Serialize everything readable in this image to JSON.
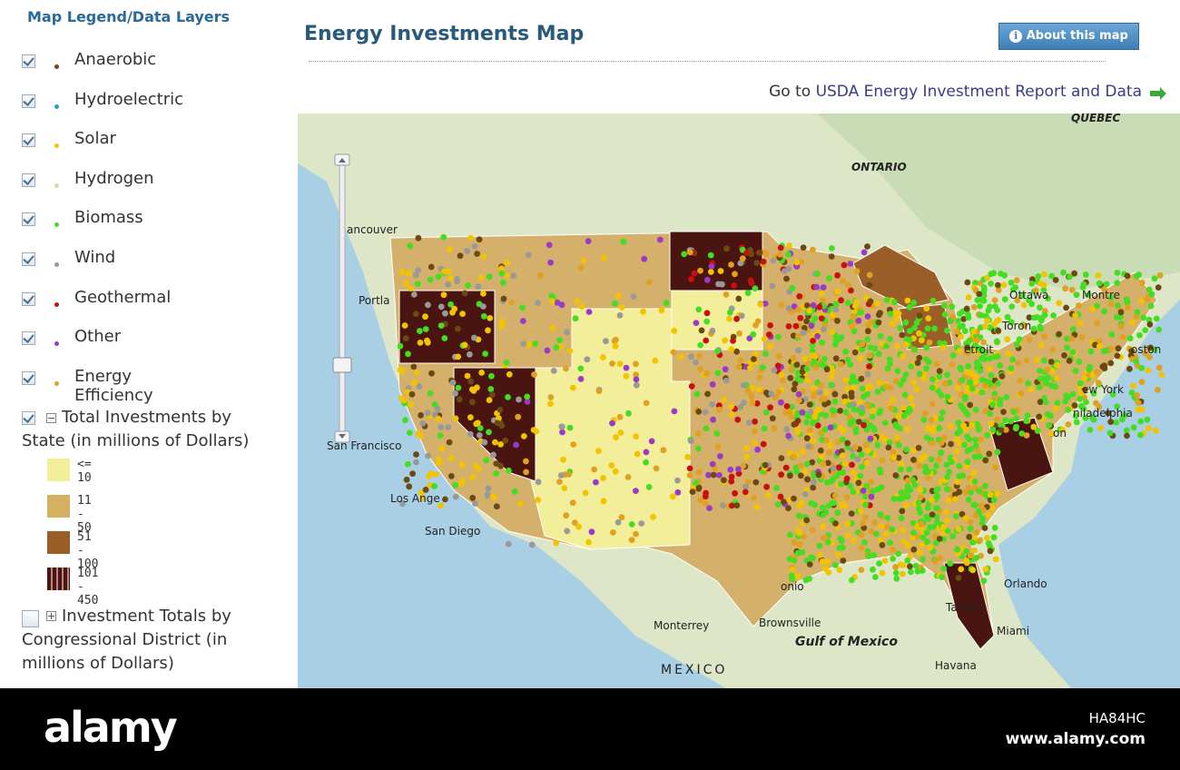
{
  "legend": {
    "title": "Map Legend/Data Layers",
    "layers": [
      {
        "label": "Anaerobic",
        "color": "#6b4a12"
      },
      {
        "label": "Hydroelectric",
        "color": "#1fa3b8"
      },
      {
        "label": "Solar",
        "color": "#f2c400"
      },
      {
        "label": "Hydrogen",
        "color": "#d8d8b0"
      },
      {
        "label": "Biomass",
        "color": "#44dd22"
      },
      {
        "label": "Wind",
        "color": "#999999"
      },
      {
        "label": "Geothermal",
        "color": "#c81010"
      },
      {
        "label": "Other",
        "color": "#9b3ac8"
      },
      {
        "label": "Energy Efficiency",
        "color": "#e0a020"
      }
    ],
    "state_totals": {
      "label": "Total Investments by State (in millions of Dollars)",
      "classes": [
        {
          "label": "<= 10",
          "color": "#f2ee9a"
        },
        {
          "label": "11 - 50",
          "color": "#d4b060"
        },
        {
          "label": "51 - 100",
          "color": "#9a5e28"
        },
        {
          "label": "101 - 450",
          "color": "#4a1410"
        }
      ]
    },
    "district_totals": {
      "label": "Investment Totals by Congressional District (in millions of Dollars)"
    }
  },
  "header": {
    "title": "Energy Investments Map",
    "button": "About this map",
    "link_prefix": "Go to",
    "link": "USDA Energy Investment Report and Data"
  },
  "map": {
    "labels": [
      "QUEBEC",
      "ONTARIO",
      "ancouver",
      "Portla",
      "San Francisco",
      "Los Ange",
      "San Diego",
      "Ottawa",
      "Montre",
      "Toron",
      "etroit",
      "oston",
      "ew York",
      "niladelphia",
      "on",
      "onio",
      "Orlando",
      "Tampa",
      "Miami",
      "Havana",
      "Monterrey",
      "Brownsville",
      "Gulf of Mexico",
      "MEXICO"
    ]
  },
  "footer": {
    "brand": "alamy",
    "image_id": "HA84HC",
    "site": "www.alamy.com"
  }
}
